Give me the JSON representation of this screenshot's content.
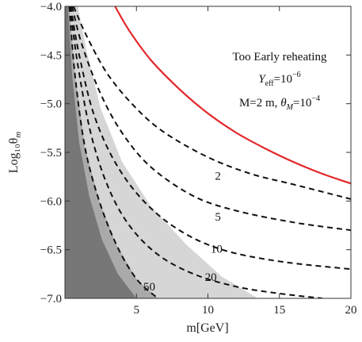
{
  "chart_data": {
    "type": "line",
    "xlabel": "m[GeV]",
    "ylabel": "Log₁₀θ",
    "ylabel_sub": "m",
    "xlim": [
      0,
      20
    ],
    "ylim": [
      -7.0,
      -4.0
    ],
    "x_ticks": [
      5,
      10,
      15,
      20
    ],
    "y_ticks": [
      -4.0,
      -4.5,
      -5.0,
      -5.5,
      -6.0,
      -6.5,
      -7.0
    ],
    "y_tick_labels": [
      "−4.0",
      "−4.5",
      "−5.0",
      "−5.5",
      "−6.0",
      "−6.5",
      "−7.0"
    ],
    "annotations": {
      "line1": "Too Early reheating",
      "line2_base": "Y",
      "line2_sub": "eff",
      "line2_rest": "=10",
      "line2_sup": "−6",
      "line3_pre": "M=2 m, ",
      "line3_theta": "θ",
      "line3_sub": "M",
      "line3_rest": "=10",
      "line3_sup": "−4"
    },
    "red_curve": {
      "color": "#e3262a",
      "x": [
        3.5,
        4.5,
        6,
        8,
        10,
        12,
        14,
        16,
        18,
        20
      ],
      "y": [
        -4.0,
        -4.25,
        -4.55,
        -4.85,
        -5.1,
        -5.3,
        -5.46,
        -5.6,
        -5.72,
        -5.82
      ]
    },
    "series": [
      {
        "name": "2",
        "x": [
          0.6,
          1.5,
          3,
          5,
          7,
          10,
          13,
          16,
          20
        ],
        "y": [
          -4.0,
          -4.3,
          -4.7,
          -5.05,
          -5.3,
          -5.55,
          -5.72,
          -5.83,
          -5.98
        ]
      },
      {
        "name": "5",
        "x": [
          0.5,
          1.2,
          2.5,
          4,
          6,
          9,
          12,
          16,
          20
        ],
        "y": [
          -4.0,
          -4.4,
          -4.9,
          -5.3,
          -5.65,
          -5.95,
          -6.1,
          -6.22,
          -6.3
        ]
      },
      {
        "name": "10",
        "x": [
          0.4,
          1.0,
          2.0,
          3.5,
          5.5,
          8,
          11,
          15,
          20
        ],
        "y": [
          -4.0,
          -4.5,
          -5.1,
          -5.6,
          -6.0,
          -6.3,
          -6.5,
          -6.62,
          -6.7
        ]
      },
      {
        "name": "20",
        "x": [
          0.35,
          0.9,
          1.8,
          3.0,
          4.5,
          6.5,
          9,
          12,
          15,
          18
        ],
        "y": [
          -4.0,
          -4.6,
          -5.3,
          -5.85,
          -6.25,
          -6.55,
          -6.75,
          -6.88,
          -6.95,
          -7.0
        ]
      },
      {
        "name": "50",
        "x": [
          0.3,
          0.7,
          1.4,
          2.4,
          3.6,
          5.0,
          6.5
        ],
        "y": [
          -4.0,
          -4.7,
          -5.45,
          -6.0,
          -6.45,
          -6.8,
          -7.0
        ]
      }
    ],
    "series_label_positions": [
      {
        "name": "2",
        "x": 10.7,
        "y": -5.78
      },
      {
        "name": "5",
        "x": 10.7,
        "y": -6.2
      },
      {
        "name": "10",
        "x": 10.6,
        "y": -6.53
      },
      {
        "name": "20",
        "x": 10.2,
        "y": -6.82
      },
      {
        "name": "50",
        "x": 5.9,
        "y": -6.92
      }
    ],
    "regions": {
      "light_gray": {
        "color": "#d6d6d6",
        "upper_x": [
          0.9,
          1.5,
          2.5,
          4.0,
          6.0,
          8.5,
          11,
          13.5
        ],
        "upper_y": [
          -4.0,
          -4.45,
          -5.05,
          -5.6,
          -6.05,
          -6.45,
          -6.78,
          -7.0
        ],
        "lower_x": [
          0.3,
          0.7,
          1.4,
          2.4,
          3.6,
          5.0,
          6.5
        ],
        "lower_y": [
          -4.0,
          -4.7,
          -5.45,
          -6.0,
          -6.45,
          -6.8,
          -7.0
        ]
      },
      "mid_gray": {
        "color": "#aaaaaa",
        "x": [
          0.3,
          0.7,
          1.4,
          2.4,
          3.6,
          5.0,
          6.5
        ],
        "y": [
          -4.0,
          -4.7,
          -5.45,
          -6.0,
          -6.45,
          -6.8,
          -7.0
        ],
        "inner_x": [
          0.2,
          0.5,
          1.0,
          1.7,
          2.6,
          3.7,
          5.0
        ],
        "inner_y": [
          -4.0,
          -4.7,
          -5.4,
          -5.95,
          -6.4,
          -6.75,
          -7.0
        ]
      },
      "dark_gray": {
        "color": "#777777",
        "x": [
          0.2,
          0.5,
          1.0,
          1.7,
          2.6,
          3.7,
          5.0
        ],
        "y": [
          -4.0,
          -4.7,
          -5.4,
          -5.95,
          -6.4,
          -6.75,
          -7.0
        ]
      }
    },
    "grid": false
  }
}
